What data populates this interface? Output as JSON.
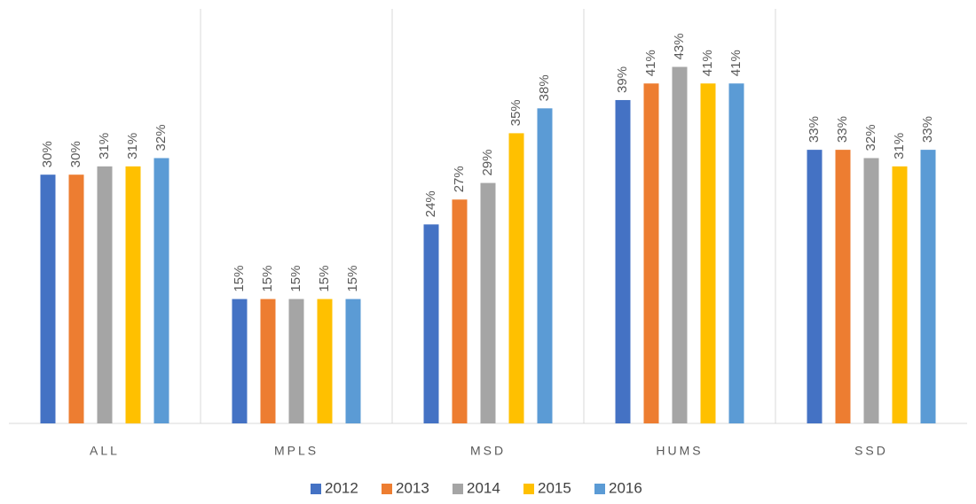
{
  "chart_data": {
    "type": "bar",
    "categories": [
      "ALL",
      "MPLS",
      "MSD",
      "HUMS",
      "SSD"
    ],
    "series": [
      {
        "name": "2012",
        "color": "#4472c4",
        "values": [
          30,
          15,
          24,
          39,
          33
        ],
        "value_labels": [
          "30%",
          "15%",
          "24%",
          "39%",
          "33%"
        ]
      },
      {
        "name": "2013",
        "color": "#ed7d31",
        "values": [
          30,
          15,
          27,
          41,
          33
        ],
        "value_labels": [
          "30%",
          "15%",
          "27%",
          "41%",
          "33%"
        ]
      },
      {
        "name": "2014",
        "color": "#a5a5a5",
        "values": [
          31,
          15,
          29,
          43,
          32
        ],
        "value_labels": [
          "31%",
          "15%",
          "29%",
          "43%",
          "32%"
        ]
      },
      {
        "name": "2015",
        "color": "#ffc000",
        "values": [
          31,
          15,
          35,
          41,
          31
        ],
        "value_labels": [
          "31%",
          "15%",
          "35%",
          "41%",
          "31%"
        ]
      },
      {
        "name": "2016",
        "color": "#5b9bd5",
        "values": [
          32,
          15,
          38,
          41,
          33
        ],
        "value_labels": [
          "32%",
          "15%",
          "38%",
          "41%",
          "33%"
        ]
      }
    ],
    "ylim": [
      0,
      50
    ],
    "legend": "bottom"
  }
}
